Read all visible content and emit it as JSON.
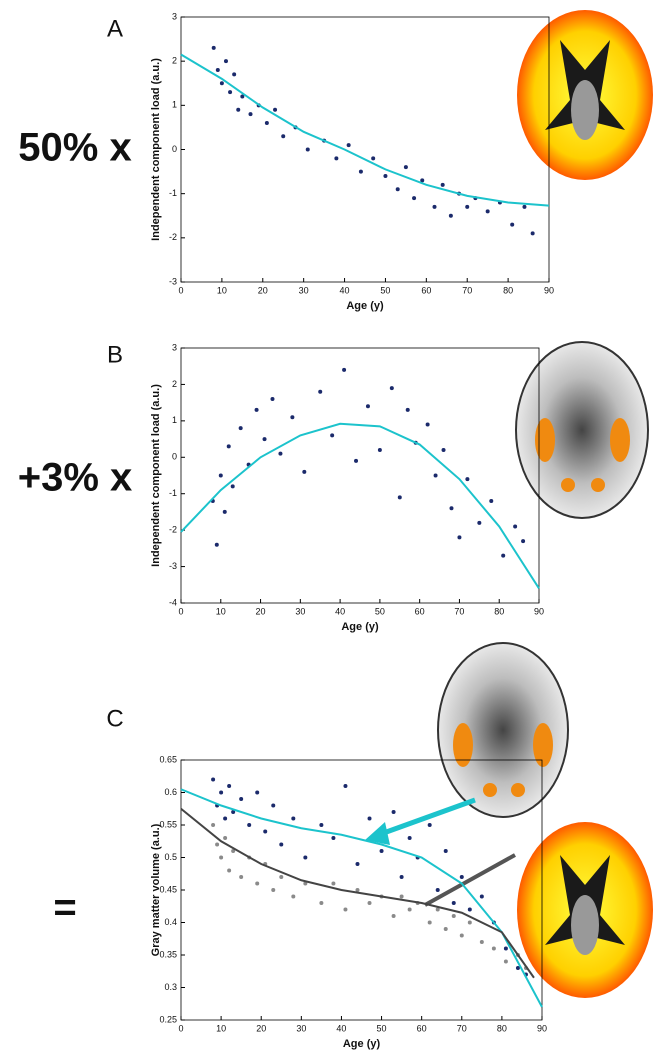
{
  "chart_data": [
    {
      "type": "scatter",
      "panel": "A",
      "factor_label": "50% x",
      "xlabel": "Age (y)",
      "ylabel": "Independent component load (a.u.)",
      "xlim": [
        0,
        90
      ],
      "xticks": [
        0,
        10,
        20,
        30,
        40,
        50,
        60,
        70,
        80,
        90
      ],
      "ylim": [
        -3,
        3
      ],
      "yticks": [
        -3,
        -2,
        -1,
        0,
        1,
        2,
        3
      ],
      "series": [
        {
          "mode": "markers",
          "color": "#1b2a6b",
          "x": [
            8,
            9,
            10,
            11,
            12,
            13,
            14,
            15,
            17,
            19,
            21,
            23,
            25,
            28,
            31,
            35,
            38,
            41,
            44,
            47,
            50,
            53,
            55,
            57,
            59,
            62,
            64,
            66,
            68,
            70,
            72,
            75,
            78,
            81,
            84,
            86
          ],
          "values": [
            2.3,
            1.8,
            1.5,
            2.0,
            1.3,
            1.7,
            0.9,
            1.2,
            0.8,
            1.0,
            0.6,
            0.9,
            0.3,
            0.5,
            0.0,
            0.2,
            -0.2,
            0.1,
            -0.5,
            -0.2,
            -0.6,
            -0.9,
            -0.4,
            -1.1,
            -0.7,
            -1.3,
            -0.8,
            -1.5,
            -1.0,
            -1.3,
            -1.1,
            -1.4,
            -1.2,
            -1.7,
            -1.3,
            -1.9
          ]
        },
        {
          "mode": "line",
          "color": "#1cc3cc",
          "x": [
            0,
            10,
            20,
            30,
            40,
            50,
            60,
            70,
            80,
            90
          ],
          "values": [
            2.15,
            1.6,
            0.95,
            0.4,
            0.0,
            -0.45,
            -0.8,
            -1.05,
            -1.2,
            -1.27
          ]
        }
      ]
    },
    {
      "type": "scatter",
      "panel": "B",
      "factor_label": "+3% x",
      "xlabel": "Age (y)",
      "ylabel": "Independent component load (a.u.)",
      "xlim": [
        0,
        90
      ],
      "xticks": [
        0,
        10,
        20,
        30,
        40,
        50,
        60,
        70,
        80,
        90
      ],
      "ylim": [
        -4,
        3
      ],
      "yticks": [
        -4,
        -3,
        -2,
        -1,
        0,
        1,
        2,
        3
      ],
      "series": [
        {
          "mode": "markers",
          "color": "#1b2a6b",
          "x": [
            8,
            9,
            10,
            11,
            12,
            13,
            15,
            17,
            19,
            21,
            23,
            25,
            28,
            31,
            35,
            38,
            41,
            44,
            47,
            50,
            53,
            55,
            57,
            59,
            62,
            64,
            66,
            68,
            70,
            72,
            75,
            78,
            81,
            84,
            86
          ],
          "values": [
            -1.2,
            -2.4,
            -0.5,
            -1.5,
            0.3,
            -0.8,
            0.8,
            -0.2,
            1.3,
            0.5,
            1.6,
            0.1,
            1.1,
            -0.4,
            1.8,
            0.6,
            2.4,
            -0.1,
            1.4,
            0.2,
            1.9,
            -1.1,
            1.3,
            0.4,
            0.9,
            -0.5,
            0.2,
            -1.4,
            -2.2,
            -0.6,
            -1.8,
            -1.2,
            -2.7,
            -1.9,
            -2.3
          ]
        },
        {
          "mode": "line",
          "color": "#1cc3cc",
          "x": [
            0,
            10,
            20,
            30,
            40,
            50,
            60,
            70,
            80,
            90
          ],
          "values": [
            -2.05,
            -0.9,
            0.0,
            0.6,
            0.92,
            0.85,
            0.35,
            -0.6,
            -1.9,
            -3.6
          ]
        }
      ]
    },
    {
      "type": "scatter",
      "panel": "C",
      "factor_label": "=",
      "xlabel": "Age (y)",
      "ylabel": "Gray matter volume (a.u.)",
      "xlim": [
        0,
        90
      ],
      "xticks": [
        0,
        10,
        20,
        30,
        40,
        50,
        60,
        70,
        80,
        90
      ],
      "ylim": [
        0.25,
        0.65
      ],
      "yticks": [
        0.25,
        0.3,
        0.35,
        0.4,
        0.45,
        0.5,
        0.55,
        0.6,
        0.65
      ],
      "series": [
        {
          "mode": "markers",
          "color": "#8a8a8a",
          "x": [
            8,
            9,
            10,
            11,
            12,
            13,
            15,
            17,
            19,
            21,
            23,
            25,
            28,
            31,
            35,
            38,
            41,
            44,
            47,
            50,
            53,
            55,
            57,
            59,
            62,
            64,
            66,
            68,
            70,
            72,
            75,
            78,
            81,
            84,
            86
          ],
          "values": [
            0.55,
            0.52,
            0.5,
            0.53,
            0.48,
            0.51,
            0.47,
            0.5,
            0.46,
            0.49,
            0.45,
            0.47,
            0.44,
            0.46,
            0.43,
            0.46,
            0.42,
            0.45,
            0.43,
            0.44,
            0.41,
            0.44,
            0.42,
            0.43,
            0.4,
            0.42,
            0.39,
            0.41,
            0.38,
            0.4,
            0.37,
            0.36,
            0.34,
            0.35,
            0.33
          ]
        },
        {
          "mode": "markers",
          "color": "#1b2a6b",
          "x": [
            8,
            9,
            10,
            11,
            12,
            13,
            15,
            17,
            19,
            21,
            23,
            25,
            28,
            31,
            35,
            38,
            41,
            44,
            47,
            50,
            53,
            55,
            57,
            59,
            62,
            64,
            66,
            68,
            70,
            72,
            75,
            78,
            81,
            84,
            86
          ],
          "values": [
            0.62,
            0.58,
            0.6,
            0.56,
            0.61,
            0.57,
            0.59,
            0.55,
            0.6,
            0.54,
            0.58,
            0.52,
            0.56,
            0.5,
            0.55,
            0.53,
            0.61,
            0.49,
            0.56,
            0.51,
            0.57,
            0.47,
            0.53,
            0.5,
            0.55,
            0.45,
            0.51,
            0.43,
            0.47,
            0.42,
            0.44,
            0.4,
            0.36,
            0.33,
            0.32
          ]
        },
        {
          "mode": "line",
          "color": "#1cc3cc",
          "x": [
            0,
            10,
            20,
            30,
            40,
            50,
            60,
            70,
            80,
            90
          ],
          "values": [
            0.605,
            0.58,
            0.56,
            0.545,
            0.535,
            0.52,
            0.5,
            0.46,
            0.385,
            0.27
          ]
        },
        {
          "mode": "line",
          "color": "#444444",
          "x": [
            0,
            10,
            20,
            30,
            40,
            50,
            60,
            70,
            80,
            88
          ],
          "values": [
            0.575,
            0.525,
            0.49,
            0.465,
            0.45,
            0.44,
            0.43,
            0.415,
            0.385,
            0.315
          ]
        }
      ]
    }
  ]
}
